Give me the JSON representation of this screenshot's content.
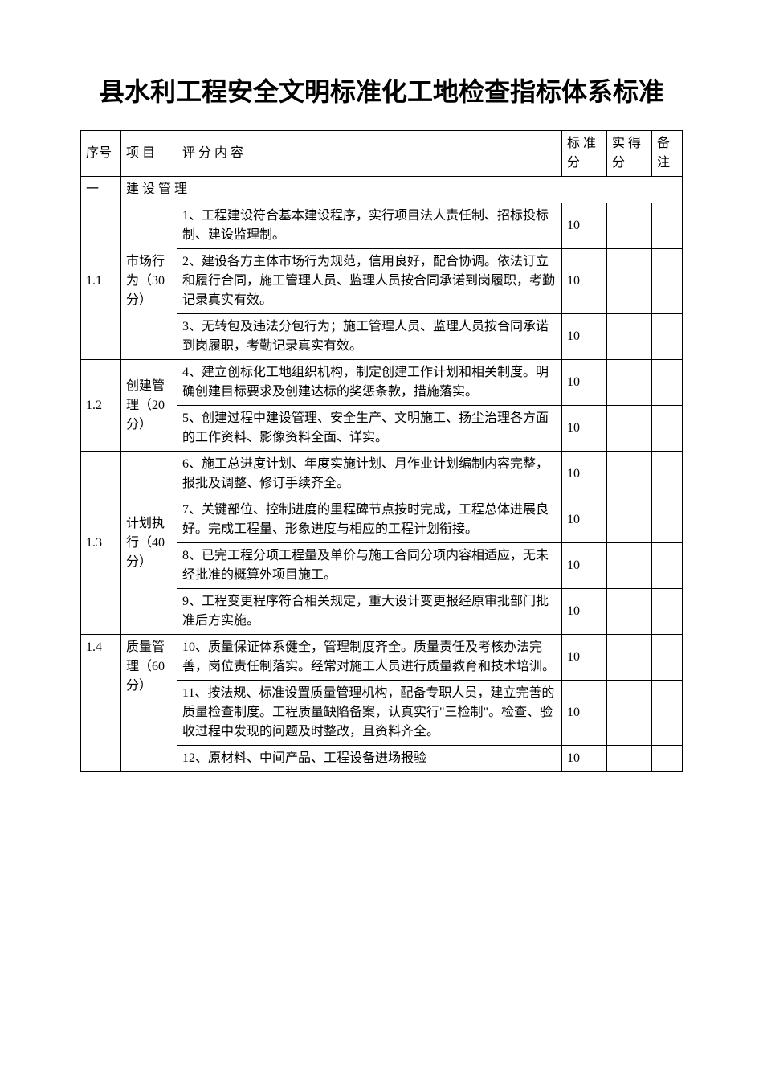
{
  "title": "县水利工程安全文明标准化工地检查指标体系标准",
  "headers": {
    "seq": "序号",
    "item": "项 目",
    "content": "评  分  内  容",
    "std": "标 准分",
    "act": "实 得分",
    "note": "备注"
  },
  "section1": {
    "num": "一",
    "label": "建   设   管   理"
  },
  "rows": {
    "r11": {
      "num": "1.1",
      "item": "市场行为（30 分）"
    },
    "r12": {
      "num": "1.2",
      "item": "创建管理（20 分）"
    },
    "r13": {
      "num": "1.3",
      "item": "计划执行（40 分）"
    },
    "r14": {
      "num": "1.4",
      "item": "质量管理（60 分）"
    },
    "c1": {
      "text": "1、工程建设符合基本建设程序，实行项目法人责任制、招标投标制、建设监理制。",
      "score": "10"
    },
    "c2": {
      "text": "2、建设各方主体市场行为规范，信用良好，配合协调。依法订立和履行合同，施工管理人员、监理人员按合同承诺到岗履职，考勤记录真实有效。",
      "score": "10"
    },
    "c3": {
      "text": "3、无转包及违法分包行为；施工管理人员、监理人员按合同承诺到岗履职，考勤记录真实有效。",
      "score": "10"
    },
    "c4": {
      "text": "4、建立创标化工地组织机构，制定创建工作计划和相关制度。明确创建目标要求及创建达标的奖惩条款，措施落实。",
      "score": "10"
    },
    "c5": {
      "text": "5、创建过程中建设管理、安全生产、文明施工、扬尘治理各方面的工作资料、影像资料全面、详实。",
      "score": "10"
    },
    "c6": {
      "text": "6、施工总进度计划、年度实施计划、月作业计划编制内容完整，报批及调整、修订手续齐全。",
      "score": "10"
    },
    "c7": {
      "text": "7、关键部位、控制进度的里程碑节点按时完成，工程总体进展良好。完成工程量、形象进度与相应的工程计划衔接。",
      "score": "10"
    },
    "c8": {
      "text": "8、已完工程分项工程量及单价与施工合同分项内容相适应，无未经批准的概算外项目施工。",
      "score": "10"
    },
    "c9": {
      "text": "9、工程变更程序符合相关规定，重大设计变更报经原审批部门批准后方实施。",
      "score": "10"
    },
    "c10": {
      "text": "10、质量保证体系健全，管理制度齐全。质量责任及考核办法完善，岗位责任制落实。经常对施工人员进行质量教育和技术培训。",
      "score": "10"
    },
    "c11": {
      "text": "11、按法规、标准设置质量管理机构，配备专职人员，建立完善的质量检查制度。工程质量缺陷备案，认真实行\"三检制\"。检查、验收过程中发现的问题及时整改，且资料齐全。",
      "score": "10"
    },
    "c12": {
      "text": "12、原材料、中间产品、工程设备进场报验",
      "score": "10"
    }
  },
  "colors": {
    "text": "#000000",
    "border": "#000000",
    "background": "#ffffff"
  }
}
